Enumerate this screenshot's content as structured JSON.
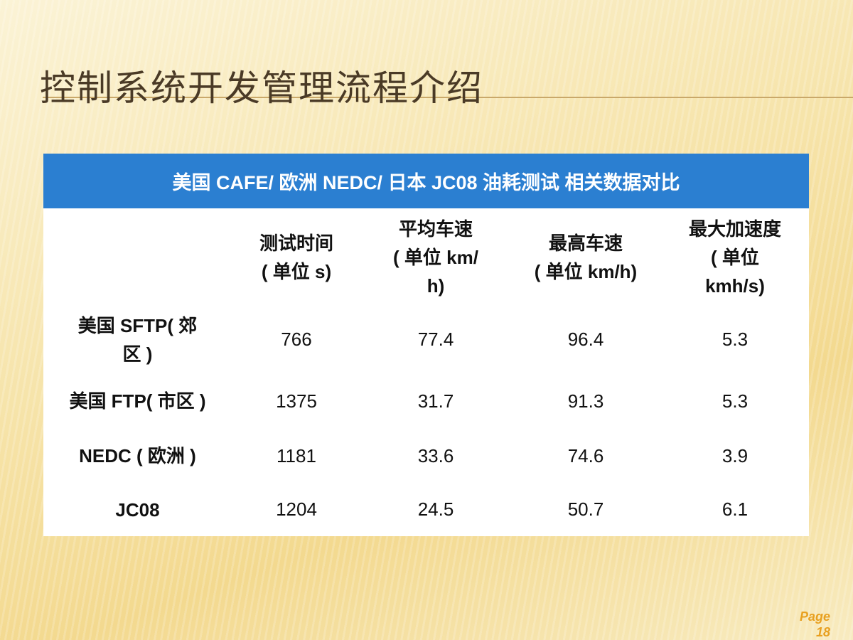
{
  "title": "控制系统开发管理流程介绍",
  "table": {
    "caption": "美国 CAFE/ 欧洲 NEDC/ 日本 JC08 油耗测试 相关数据对比",
    "columns": [
      [
        "测试时间",
        "( 单位  s)"
      ],
      [
        "平均车速",
        "( 单位  km/",
        "h)"
      ],
      [
        "最高车速",
        "( 单位  km/h)"
      ],
      [
        "最大加速度",
        "( 单位",
        "kmh/s)"
      ]
    ],
    "rows": [
      {
        "label": [
          "美国 SFTP( 郊",
          "区 )"
        ],
        "cells": [
          "766",
          "77.4",
          "96.4",
          "5.3"
        ]
      },
      {
        "label": [
          "美国 FTP( 市区 )"
        ],
        "cells": [
          "1375",
          "31.7",
          "91.3",
          "5.3"
        ]
      },
      {
        "label": [
          "NEDC ( 欧洲 )"
        ],
        "cells": [
          "1181",
          "33.6",
          "74.6",
          "3.9"
        ]
      },
      {
        "label": [
          "JC08"
        ],
        "cells": [
          "1204",
          "24.5",
          "50.7",
          "6.1"
        ]
      }
    ]
  },
  "footer": {
    "label": "Page",
    "page_number": "18"
  }
}
